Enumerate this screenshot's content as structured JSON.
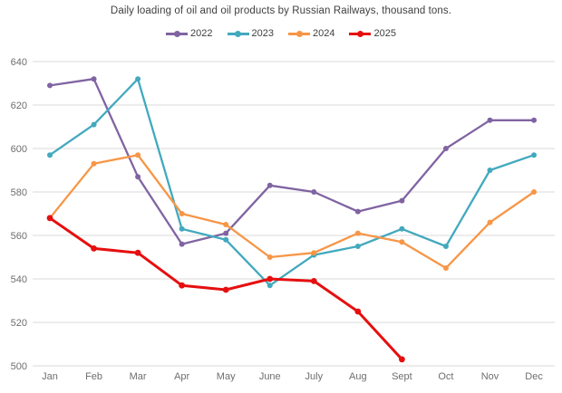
{
  "chart_data": {
    "type": "line",
    "title": "Daily loading of oil and oil products by Russian Railways, thousand tons.",
    "categories": [
      "Jan",
      "Feb",
      "Mar",
      "Apr",
      "May",
      "June",
      "July",
      "Aug",
      "Sept",
      "Oct",
      "Nov",
      "Dec"
    ],
    "series": [
      {
        "name": "2022",
        "color": "#8064A2",
        "values": [
          629,
          632,
          587,
          556,
          561,
          583,
          580,
          571,
          576,
          600,
          613,
          613
        ]
      },
      {
        "name": "2023",
        "color": "#42A9BE",
        "values": [
          597,
          611,
          632,
          563,
          558,
          537,
          551,
          555,
          563,
          555,
          590,
          597
        ]
      },
      {
        "name": "2024",
        "color": "#F79646",
        "values": [
          568,
          593,
          597,
          570,
          565,
          550,
          552,
          561,
          557,
          545,
          566,
          580
        ]
      },
      {
        "name": "2025",
        "color": "#E60F0F",
        "values": [
          568,
          554,
          552,
          537,
          535,
          540,
          539,
          525,
          503
        ]
      }
    ],
    "ylabel": "",
    "xlabel": "",
    "ylim": [
      500,
      640
    ],
    "y_ticks": [
      500,
      520,
      540,
      560,
      580,
      600,
      620,
      640
    ],
    "grid": "horizontal",
    "legend_position": "top-center",
    "colors": {
      "background": "#FFFFFF",
      "gridline": "#D9D9D9",
      "tick_label": "#6E6E6E",
      "title_text": "#3F3F3F"
    }
  }
}
